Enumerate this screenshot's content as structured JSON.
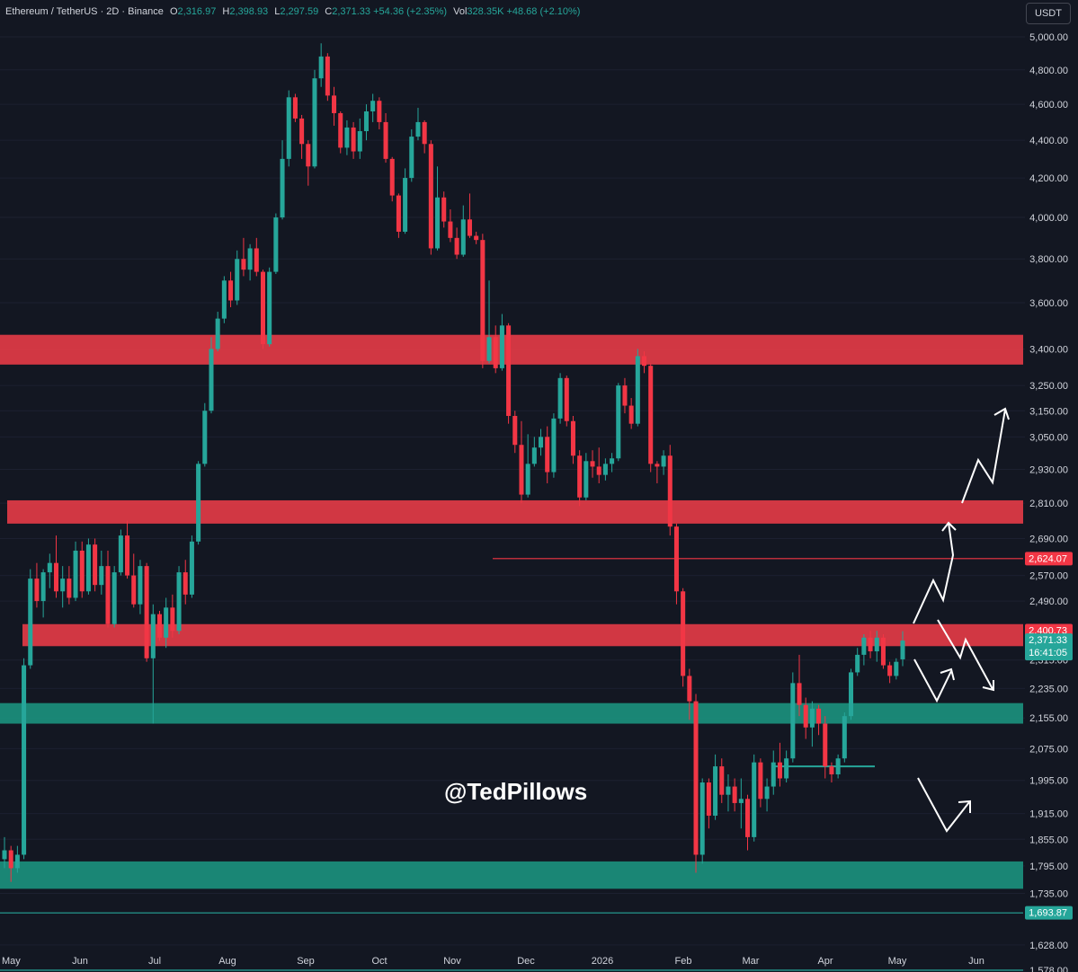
{
  "header": {
    "symbol": "Ethereum / TetherUS · 2D · Binance",
    "o_label": "O",
    "o_value": "2,316.97",
    "h_label": "H",
    "h_value": "2,398.93",
    "l_label": "L",
    "l_value": "2,297.59",
    "c_label": "C",
    "c_value": "2,371.33",
    "change": "+54.36 (+2.35%)",
    "vol_label": "Vol",
    "vol_value": "328.35K",
    "vol_change": "+48.68 (+2.10%)"
  },
  "currency_button": "USDT",
  "watermark": "@TedPillows",
  "colors": {
    "background": "#131722",
    "up": "#26a69a",
    "down": "#f23645",
    "resistance_zone": "#e03a46",
    "support_zone": "#1b8f7c",
    "arrows": "#ffffff"
  },
  "chart_data": {
    "type": "candlestick",
    "timeframe": "2D",
    "y_scale": "log",
    "ylim": [
      1540,
      5100
    ],
    "y_ticks": [
      {
        "label": "5,000.00",
        "value": 5000
      },
      {
        "label": "4,800.00",
        "value": 4800
      },
      {
        "label": "4,600.00",
        "value": 4600
      },
      {
        "label": "4,400.00",
        "value": 4400
      },
      {
        "label": "4,200.00",
        "value": 4200
      },
      {
        "label": "4,000.00",
        "value": 4000
      },
      {
        "label": "3,800.00",
        "value": 3800
      },
      {
        "label": "3,600.00",
        "value": 3600
      },
      {
        "label": "3,400.00",
        "value": 3400
      },
      {
        "label": "3,250.00",
        "value": 3250
      },
      {
        "label": "3,150.00",
        "value": 3150
      },
      {
        "label": "3,050.00",
        "value": 3050
      },
      {
        "label": "2,930.00",
        "value": 2930
      },
      {
        "label": "2,810.00",
        "value": 2810
      },
      {
        "label": "2,690.00",
        "value": 2690
      },
      {
        "label": "2,570.00",
        "value": 2570
      },
      {
        "label": "2,490.00",
        "value": 2490
      },
      {
        "label": "2,315.00",
        "value": 2315
      },
      {
        "label": "2,235.00",
        "value": 2235
      },
      {
        "label": "2,155.00",
        "value": 2155
      },
      {
        "label": "2,075.00",
        "value": 2075
      },
      {
        "label": "1,995.00",
        "value": 1995
      },
      {
        "label": "1,915.00",
        "value": 1915
      },
      {
        "label": "1,855.00",
        "value": 1855
      },
      {
        "label": "1,795.00",
        "value": 1795
      },
      {
        "label": "1,735.00",
        "value": 1735
      },
      {
        "label": "1,628.00",
        "value": 1628
      },
      {
        "label": "1,578.00",
        "value": 1578
      }
    ],
    "x_ticks": [
      "May",
      "Jun",
      "Jul",
      "Aug",
      "Sep",
      "Oct",
      "Nov",
      "Dec",
      "2026",
      "Feb",
      "Mar",
      "Apr",
      "May",
      "Jun"
    ],
    "price_labels": [
      {
        "label": "2,624.07",
        "value": 2624.07,
        "color": "#f23645"
      },
      {
        "label": "2,400.73",
        "value": 2400.73,
        "color": "#f23645"
      },
      {
        "label": "2,371.33",
        "sub": "16:41:05",
        "value": 2371.33,
        "color": "#26a69a"
      },
      {
        "label": "1,693.87",
        "value": 1693.87,
        "color": "#26a69a"
      }
    ],
    "zones": [
      {
        "kind": "resistance",
        "from": 3335,
        "to": 3460
      },
      {
        "kind": "resistance",
        "from": 2740,
        "to": 2820
      },
      {
        "kind": "resistance",
        "from": 2355,
        "to": 2420
      },
      {
        "kind": "support",
        "from": 2140,
        "to": 2195
      },
      {
        "kind": "support",
        "from": 1745,
        "to": 1805
      }
    ],
    "level_lines": [
      {
        "value": 2624.07,
        "color": "#f23645",
        "from_date": "Nov"
      },
      {
        "value": 1693.87,
        "color": "#26a69a",
        "from_date": "May"
      },
      {
        "value": 1578,
        "color": "#26a69a",
        "from_date": "May"
      },
      {
        "value": 2030,
        "color": "#26a69a",
        "from_date": "Mar",
        "to_date": "Apr"
      }
    ],
    "candles_ohlc": [
      [
        1810,
        1860,
        1790,
        1830
      ],
      [
        1830,
        1840,
        1760,
        1790
      ],
      [
        1790,
        1840,
        1780,
        1820
      ],
      [
        1820,
        2320,
        1810,
        2300
      ],
      [
        2300,
        2590,
        2290,
        2560
      ],
      [
        2560,
        2610,
        2470,
        2490
      ],
      [
        2490,
        2590,
        2440,
        2580
      ],
      [
        2580,
        2640,
        2530,
        2610
      ],
      [
        2610,
        2700,
        2500,
        2520
      ],
      [
        2520,
        2600,
        2470,
        2560
      ],
      [
        2560,
        2600,
        2480,
        2500
      ],
      [
        2500,
        2680,
        2490,
        2650
      ],
      [
        2650,
        2680,
        2500,
        2520
      ],
      [
        2520,
        2690,
        2510,
        2670
      ],
      [
        2670,
        2690,
        2520,
        2540
      ],
      [
        2540,
        2650,
        2510,
        2600
      ],
      [
        2600,
        2650,
        2410,
        2420
      ],
      [
        2420,
        2600,
        2410,
        2580
      ],
      [
        2580,
        2720,
        2570,
        2700
      ],
      [
        2700,
        2750,
        2560,
        2570
      ],
      [
        2570,
        2640,
        2470,
        2480
      ],
      [
        2480,
        2620,
        2450,
        2600
      ],
      [
        2600,
        2610,
        2310,
        2320
      ],
      [
        2320,
        2480,
        2140,
        2450
      ],
      [
        2450,
        2460,
        2370,
        2380
      ],
      [
        2380,
        2500,
        2350,
        2470
      ],
      [
        2470,
        2510,
        2380,
        2400
      ],
      [
        2400,
        2600,
        2390,
        2580
      ],
      [
        2580,
        2620,
        2480,
        2510
      ],
      [
        2510,
        2700,
        2500,
        2680
      ],
      [
        2680,
        2960,
        2670,
        2950
      ],
      [
        2950,
        3180,
        2940,
        3150
      ],
      [
        3150,
        3450,
        3140,
        3400
      ],
      [
        3400,
        3560,
        3390,
        3530
      ],
      [
        3530,
        3720,
        3510,
        3700
      ],
      [
        3700,
        3740,
        3580,
        3610
      ],
      [
        3610,
        3840,
        3590,
        3800
      ],
      [
        3800,
        3900,
        3720,
        3750
      ],
      [
        3750,
        3870,
        3700,
        3850
      ],
      [
        3850,
        3900,
        3720,
        3740
      ],
      [
        3740,
        3750,
        3400,
        3420
      ],
      [
        3420,
        3760,
        3410,
        3740
      ],
      [
        3740,
        4020,
        3730,
        4000
      ],
      [
        4000,
        4400,
        3990,
        4300
      ],
      [
        4300,
        4680,
        4260,
        4640
      ],
      [
        4640,
        4660,
        4500,
        4520
      ],
      [
        4520,
        4540,
        4300,
        4380
      ],
      [
        4380,
        4400,
        4160,
        4260
      ],
      [
        4260,
        4800,
        4250,
        4750
      ],
      [
        4750,
        4960,
        4700,
        4880
      ],
      [
        4880,
        4900,
        4620,
        4650
      ],
      [
        4650,
        4700,
        4480,
        4550
      ],
      [
        4550,
        4560,
        4330,
        4360
      ],
      [
        4360,
        4510,
        4320,
        4470
      ],
      [
        4470,
        4500,
        4300,
        4340
      ],
      [
        4340,
        4520,
        4300,
        4450
      ],
      [
        4450,
        4600,
        4400,
        4560
      ],
      [
        4560,
        4660,
        4500,
        4620
      ],
      [
        4620,
        4640,
        4460,
        4500
      ],
      [
        4500,
        4550,
        4280,
        4300
      ],
      [
        4300,
        4310,
        4080,
        4110
      ],
      [
        4110,
        4120,
        3900,
        3930
      ],
      [
        3930,
        4250,
        3920,
        4200
      ],
      [
        4200,
        4460,
        4180,
        4420
      ],
      [
        4420,
        4580,
        4400,
        4500
      ],
      [
        4500,
        4510,
        4330,
        4380
      ],
      [
        4380,
        4400,
        3820,
        3850
      ],
      [
        3850,
        4260,
        3840,
        4100
      ],
      [
        4100,
        4130,
        3950,
        3980
      ],
      [
        3980,
        4040,
        3880,
        3900
      ],
      [
        3900,
        3950,
        3800,
        3820
      ],
      [
        3820,
        4060,
        3810,
        3990
      ],
      [
        3990,
        4120,
        3900,
        3910
      ],
      [
        3910,
        3930,
        3870,
        3890
      ],
      [
        3890,
        3920,
        3320,
        3350
      ],
      [
        3350,
        3700,
        3340,
        3450
      ],
      [
        3450,
        3500,
        3300,
        3320
      ],
      [
        3320,
        3550,
        3310,
        3500
      ],
      [
        3500,
        3510,
        3100,
        3130
      ],
      [
        3130,
        3150,
        2990,
        3020
      ],
      [
        3020,
        3110,
        2810,
        2840
      ],
      [
        2840,
        3060,
        2830,
        2950
      ],
      [
        2950,
        3050,
        2940,
        3010
      ],
      [
        3010,
        3080,
        2980,
        3050
      ],
      [
        3050,
        3090,
        2880,
        2920
      ],
      [
        2920,
        3140,
        2900,
        3120
      ],
      [
        3120,
        3300,
        3100,
        3280
      ],
      [
        3280,
        3290,
        3090,
        3110
      ],
      [
        3110,
        3130,
        2950,
        2980
      ],
      [
        2980,
        3000,
        2800,
        2830
      ],
      [
        2830,
        2990,
        2820,
        2960
      ],
      [
        2960,
        3000,
        2900,
        2940
      ],
      [
        2940,
        3010,
        2880,
        2910
      ],
      [
        2910,
        2970,
        2890,
        2950
      ],
      [
        2950,
        2990,
        2920,
        2970
      ],
      [
        2970,
        3260,
        2960,
        3250
      ],
      [
        3250,
        3280,
        3140,
        3170
      ],
      [
        3170,
        3200,
        3080,
        3100
      ],
      [
        3100,
        3400,
        3090,
        3370
      ],
      [
        3370,
        3390,
        3300,
        3330
      ],
      [
        3330,
        3340,
        2920,
        2950
      ],
      [
        2950,
        2960,
        2880,
        2940
      ],
      [
        2940,
        3000,
        2910,
        2980
      ],
      [
        2980,
        3020,
        2700,
        2730
      ],
      [
        2730,
        2740,
        2480,
        2520
      ],
      [
        2520,
        2530,
        2240,
        2270
      ],
      [
        2270,
        2290,
        2150,
        2200
      ],
      [
        2200,
        2220,
        1780,
        1820
      ],
      [
        1820,
        2000,
        1800,
        1990
      ],
      [
        1990,
        2000,
        1880,
        1910
      ],
      [
        1910,
        2060,
        1900,
        2030
      ],
      [
        2030,
        2050,
        1940,
        1960
      ],
      [
        1960,
        2010,
        1920,
        1980
      ],
      [
        1980,
        2000,
        1920,
        1940
      ],
      [
        1940,
        2000,
        1880,
        1950
      ],
      [
        1950,
        1960,
        1830,
        1860
      ],
      [
        1860,
        2060,
        1850,
        2040
      ],
      [
        2040,
        2050,
        1930,
        1950
      ],
      [
        1950,
        2000,
        1920,
        1980
      ],
      [
        1980,
        2070,
        1960,
        2040
      ],
      [
        2040,
        2090,
        1980,
        2000
      ],
      [
        2000,
        2070,
        1990,
        2050
      ],
      [
        2050,
        2280,
        2040,
        2250
      ],
      [
        2250,
        2330,
        2160,
        2190
      ],
      [
        2190,
        2210,
        2100,
        2130
      ],
      [
        2130,
        2200,
        2080,
        2180
      ],
      [
        2180,
        2190,
        2110,
        2140
      ],
      [
        2140,
        2160,
        2000,
        2030
      ],
      [
        2030,
        2040,
        1990,
        2010
      ],
      [
        2010,
        2060,
        2000,
        2050
      ],
      [
        2050,
        2170,
        2040,
        2160
      ],
      [
        2160,
        2290,
        2150,
        2280
      ],
      [
        2280,
        2350,
        2270,
        2330
      ],
      [
        2330,
        2390,
        2300,
        2380
      ],
      [
        2380,
        2400,
        2320,
        2340
      ],
      [
        2340,
        2400,
        2310,
        2380
      ],
      [
        2380,
        2390,
        2290,
        2300
      ],
      [
        2300,
        2310,
        2250,
        2270
      ],
      [
        2270,
        2320,
        2260,
        2310
      ],
      [
        2316.97,
        2398.93,
        2297.59,
        2371.33
      ]
    ],
    "forecast_paths": [
      {
        "name": "bullish",
        "points": [
          [
            "t",
            2331
          ],
          [
            "t+2",
            2470
          ],
          [
            "t+3",
            2420
          ],
          [
            "t+5",
            2710
          ],
          [
            "t+6",
            2690
          ],
          [
            "t+8",
            2930
          ],
          [
            "t+9",
            2860
          ],
          [
            "t+11",
            3100
          ]
        ]
      },
      {
        "name": "retest",
        "points": [
          [
            "t",
            2380
          ],
          [
            "t+2",
            2260
          ],
          [
            "t+4",
            2200
          ]
        ]
      },
      {
        "name": "bounce",
        "points": [
          [
            "t",
            2280
          ],
          [
            "t+1",
            2150
          ],
          [
            "t+2",
            2250
          ]
        ]
      },
      {
        "name": "deep-bounce",
        "points": [
          [
            "t",
            1965
          ],
          [
            "t+1",
            1840
          ],
          [
            "t+2",
            1890
          ]
        ]
      }
    ]
  }
}
